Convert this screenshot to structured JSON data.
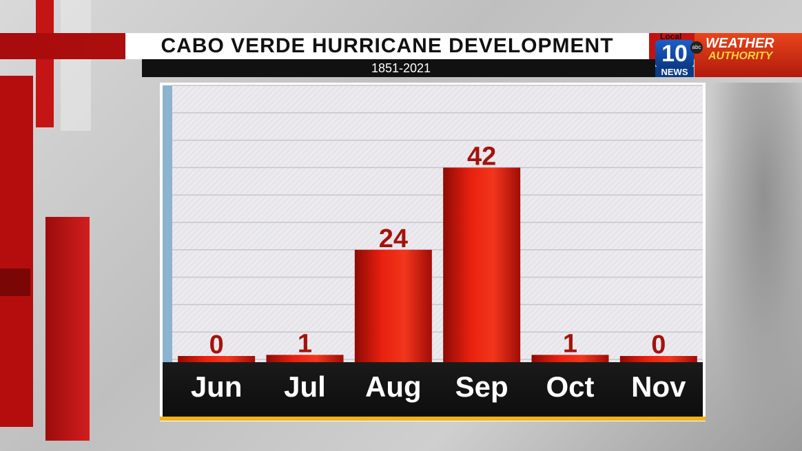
{
  "header": {
    "title": "CABO VERDE HURRICANE DEVELOPMENT",
    "subtitle": "1851-2021"
  },
  "logo": {
    "local": "Local",
    "number": "10",
    "news": "NEWS",
    "network": "abc",
    "brand_line1": "WEATHER",
    "brand_line2": "AUTHORITY"
  },
  "colors": {
    "bar": "#e21a0f",
    "bar_dark": "#9a0b06",
    "value_label": "#a3130d",
    "axis_label": "#ffffff",
    "accent": "#f2b21a"
  },
  "chart_data": {
    "type": "bar",
    "title": "CABO VERDE HURRICANE DEVELOPMENT",
    "subtitle": "1851-2021",
    "categories": [
      "Jun",
      "Jul",
      "Aug",
      "Sep",
      "Oct",
      "Nov"
    ],
    "values": [
      0,
      1,
      24,
      42,
      1,
      0
    ],
    "value_labels": [
      "0",
      "1",
      "24",
      "42",
      "1",
      "0"
    ],
    "ylim": [
      0,
      60
    ],
    "grid": true,
    "legend": "none"
  }
}
